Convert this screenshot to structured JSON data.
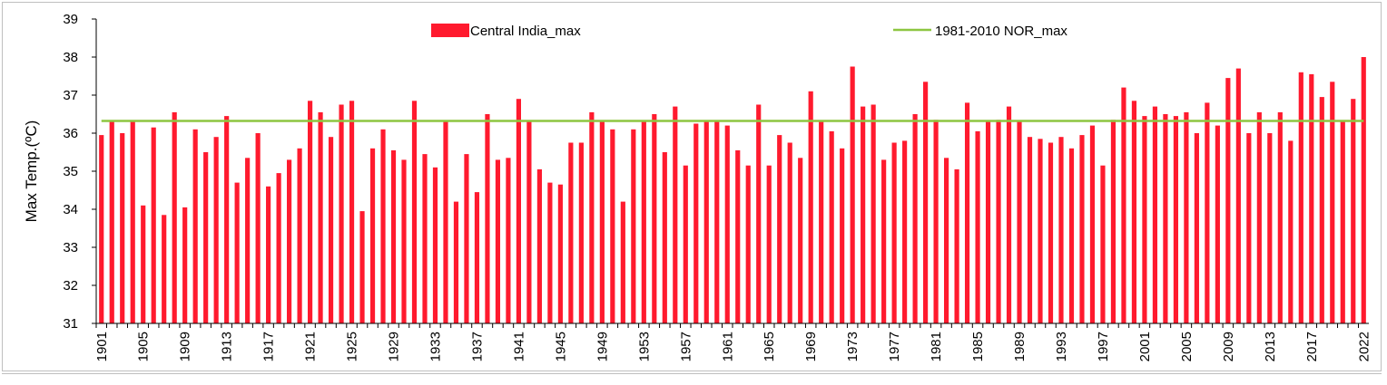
{
  "chart_data": {
    "type": "bar",
    "title": "",
    "xlabel": "",
    "ylabel": "Max Temp.(ºC)",
    "ylim": [
      31,
      39
    ],
    "yticks": [
      "31",
      "32",
      "33",
      "34",
      "35",
      "36",
      "37",
      "38",
      "39"
    ],
    "x_start": 1901,
    "x_end": 2022,
    "xtick_labels": [
      "1901",
      "1905",
      "1909",
      "1913",
      "1917",
      "1921",
      "1925",
      "1929",
      "1933",
      "1937",
      "1941",
      "1945",
      "1949",
      "1953",
      "1957",
      "1961",
      "1965",
      "1969",
      "1973",
      "1977",
      "1981",
      "1985",
      "1989",
      "1993",
      "1997",
      "2001",
      "2005",
      "2009",
      "2013",
      "2017",
      "2022"
    ],
    "series": [
      {
        "name": "Central India_max",
        "color": "#ff1a2e",
        "values": [
          35.95,
          36.3,
          36.0,
          36.3,
          34.1,
          36.15,
          33.85,
          36.55,
          34.05,
          36.1,
          35.5,
          35.9,
          36.45,
          34.7,
          35.35,
          36.0,
          34.6,
          34.95,
          35.3,
          35.6,
          36.85,
          36.55,
          35.9,
          36.75,
          36.85,
          33.95,
          35.6,
          36.1,
          35.55,
          35.3,
          36.85,
          35.45,
          35.1,
          36.3,
          34.2,
          35.45,
          34.45,
          36.5,
          35.3,
          35.35,
          36.9,
          36.3,
          35.05,
          34.7,
          34.65,
          35.75,
          35.75,
          36.55,
          36.3,
          36.1,
          34.2,
          36.1,
          36.3,
          36.5,
          35.5,
          36.7,
          35.15,
          36.25,
          36.3,
          36.3,
          36.2,
          35.55,
          35.15,
          36.75,
          35.15,
          35.95,
          35.75,
          35.35,
          37.1,
          36.3,
          36.05,
          35.6,
          37.75,
          36.7,
          36.75,
          35.3,
          35.75,
          35.8,
          36.5,
          37.35,
          36.35,
          35.35,
          35.05,
          36.8,
          36.05,
          36.3,
          36.35,
          36.7,
          36.3,
          35.9,
          35.85,
          35.75,
          35.9,
          35.6,
          35.95,
          36.2,
          35.15,
          36.35,
          37.2,
          36.85,
          36.45,
          36.7,
          36.5,
          36.45,
          36.55,
          36.0,
          36.8,
          36.2,
          37.45,
          37.7,
          36.0,
          36.55,
          36.0,
          36.55,
          35.8,
          37.6,
          37.55,
          36.95,
          37.35,
          36.3,
          36.9,
          38.0
        ]
      },
      {
        "name": "1981-2010 NOR_max",
        "color": "#8dc641",
        "type": "line",
        "value": 36.32
      }
    ]
  }
}
